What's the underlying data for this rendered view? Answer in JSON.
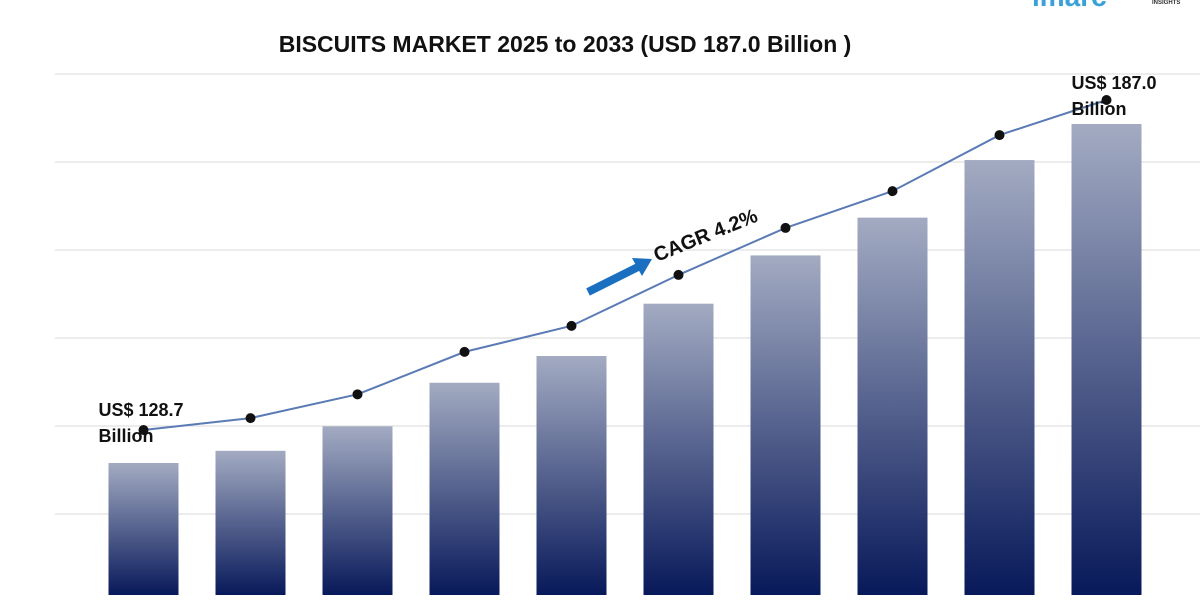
{
  "logo": {
    "name": "imarc",
    "tagline": "INSIGHTS"
  },
  "chart_data": {
    "type": "bar",
    "title": "BISCUITS MARKET 2025 to 2033 (USD 187.0 Billion )",
    "categories": [
      null,
      null,
      null,
      null,
      null,
      null,
      null,
      null,
      null,
      null
    ],
    "values": [
      128.7,
      130.8,
      135.0,
      142.5,
      147.1,
      156.1,
      164.4,
      170.9,
      180.8,
      187.0
    ],
    "value_labels": [
      "US$ 128.7 Billion",
      null,
      null,
      null,
      null,
      null,
      null,
      null,
      null,
      "US$ 187.0 Billion"
    ],
    "annotation": "CAGR 4.2%",
    "line_color": "#5b7bb5",
    "grid": true
  }
}
